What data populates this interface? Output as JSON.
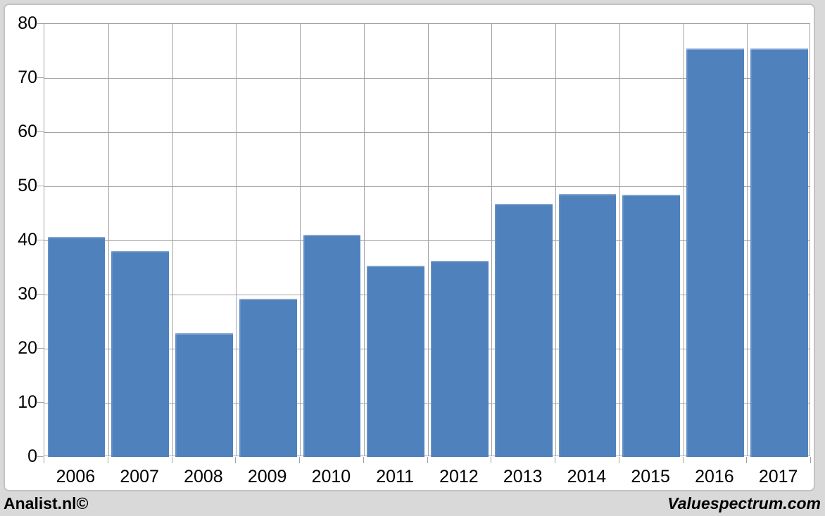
{
  "chart_data": {
    "type": "bar",
    "title": "",
    "xlabel": "",
    "ylabel": "",
    "categories": [
      "2006",
      "2007",
      "2008",
      "2009",
      "2010",
      "2011",
      "2012",
      "2013",
      "2014",
      "2015",
      "2016",
      "2017"
    ],
    "values": [
      40.7,
      38.0,
      22.9,
      29.2,
      41.0,
      35.3,
      36.2,
      46.7,
      48.6,
      48.5,
      75.5,
      75.5
    ],
    "ylim": [
      0,
      80
    ],
    "yticks": [
      0,
      10,
      20,
      30,
      40,
      50,
      60,
      70,
      80
    ],
    "grid": true,
    "legend_position": "none",
    "bar_color": "#4f81bd"
  },
  "colors": {
    "page_background": "#d9d9d9",
    "chart_background": "#ffffff",
    "frame_border": "#c3c3c3",
    "gridline": "#a3a3a3",
    "bar": "#4f81bd",
    "text": "#000000"
  },
  "footer": {
    "left": "Analist.nl©",
    "right": "Valuespectrum.com"
  }
}
